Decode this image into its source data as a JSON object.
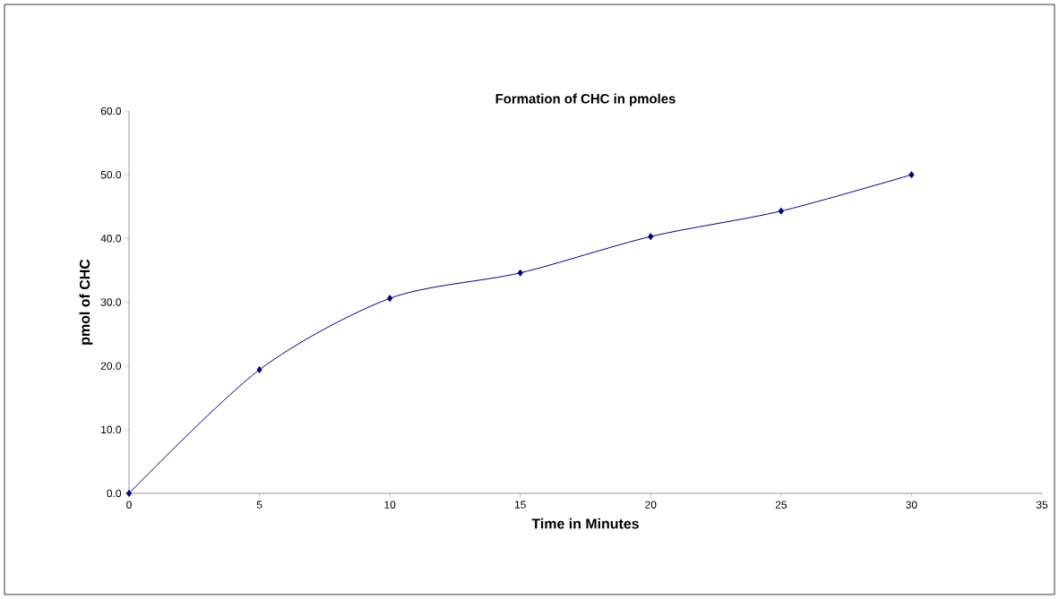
{
  "chart_data": {
    "type": "line",
    "title": "Formation of CHC in pmoles",
    "xlabel": "Time in Minutes",
    "ylabel": "pmol of CHC",
    "x": [
      0,
      5,
      10,
      15,
      20,
      25,
      30
    ],
    "series": [
      {
        "color": "#000080",
        "values": [
          0,
          19.4,
          30.6,
          34.6,
          40.3,
          44.3,
          50.0
        ]
      }
    ],
    "xlim": [
      0,
      35
    ],
    "xticks": [
      0,
      5,
      10,
      15,
      20,
      25,
      30,
      35
    ],
    "ylim": [
      0,
      60
    ],
    "yticks": [
      {
        "value": 0,
        "label": "0.0"
      },
      {
        "value": 10,
        "label": "10.0"
      },
      {
        "value": 20,
        "label": "20.0"
      },
      {
        "value": 30,
        "label": "30.0"
      },
      {
        "value": 40,
        "label": "40.0"
      },
      {
        "value": 50,
        "label": "50.0"
      },
      {
        "value": 60,
        "label": "60.0"
      }
    ],
    "grid": false,
    "marker": "diamond",
    "line_style": "solid"
  }
}
